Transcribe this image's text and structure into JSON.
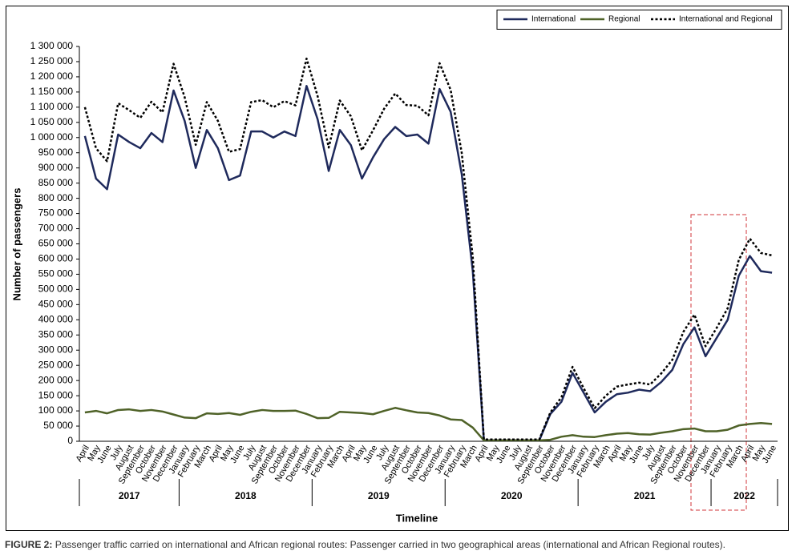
{
  "chart_data": {
    "type": "line",
    "y_label": "Number of passengers",
    "x_label": "Timeline",
    "caption_label": "FIGURE 2:",
    "caption": "Passenger traffic carried on international and African regional routes: Passenger carried in two geographical areas (international and African Regional routes).",
    "categories": [
      "April",
      "May",
      "June",
      "July",
      "August",
      "September",
      "October",
      "November",
      "December",
      "January",
      "February",
      "March",
      "April",
      "May",
      "June",
      "July",
      "August",
      "September",
      "October",
      "November",
      "December",
      "January",
      "February",
      "March",
      "April",
      "May",
      "June",
      "July",
      "August",
      "September",
      "October",
      "November",
      "December",
      "January",
      "February",
      "March",
      "April",
      "May",
      "June",
      "July",
      "August",
      "September",
      "October",
      "November",
      "December",
      "January",
      "February",
      "March",
      "April",
      "May",
      "June",
      "July",
      "August",
      "September",
      "October",
      "November",
      "December",
      "January",
      "February",
      "March",
      "April",
      "May",
      "June"
    ],
    "category_years": [
      "2017",
      "2017",
      "2017",
      "2017",
      "2017",
      "2017",
      "2017",
      "2017",
      "2017",
      "2018",
      "2018",
      "2018",
      "2018",
      "2018",
      "2018",
      "2018",
      "2018",
      "2018",
      "2018",
      "2018",
      "2018",
      "2019",
      "2019",
      "2019",
      "2019",
      "2019",
      "2019",
      "2019",
      "2019",
      "2019",
      "2019",
      "2019",
      "2019",
      "2020",
      "2020",
      "2020",
      "2020",
      "2020",
      "2020",
      "2020",
      "2020",
      "2020",
      "2020",
      "2020",
      "2020",
      "2021",
      "2021",
      "2021",
      "2021",
      "2021",
      "2021",
      "2021",
      "2021",
      "2021",
      "2021",
      "2021",
      "2021",
      "2022",
      "2022",
      "2022",
      "2022",
      "2022",
      "2022"
    ],
    "series": [
      {
        "name": "International",
        "color": "#1f2a5c",
        "dash": "solid",
        "values": [
          1005000,
          865000,
          830000,
          1010000,
          985000,
          965000,
          1015000,
          985000,
          1155000,
          1055000,
          900000,
          1025000,
          965000,
          860000,
          875000,
          1020000,
          1020000,
          1000000,
          1020000,
          1005000,
          1170000,
          1060000,
          890000,
          1025000,
          975000,
          865000,
          935000,
          995000,
          1035000,
          1005000,
          1010000,
          980000,
          1160000,
          1085000,
          880000,
          560000,
          3000,
          3000,
          3000,
          3000,
          3000,
          3000,
          90000,
          130000,
          225000,
          160000,
          95000,
          130000,
          155000,
          160000,
          170000,
          165000,
          195000,
          235000,
          320000,
          375000,
          280000,
          340000,
          400000,
          545000,
          610000,
          560000,
          555000
        ]
      },
      {
        "name": "Regional",
        "color": "#4f6228",
        "dash": "solid",
        "values": [
          95000,
          100000,
          92000,
          103000,
          105000,
          100000,
          103000,
          98000,
          88000,
          78000,
          76000,
          92000,
          90000,
          93000,
          87000,
          97000,
          103000,
          100000,
          100000,
          101000,
          90000,
          76000,
          77000,
          97000,
          95000,
          93000,
          89000,
          100000,
          110000,
          102000,
          95000,
          93000,
          85000,
          72000,
          70000,
          45000,
          3000,
          3000,
          3000,
          3000,
          3000,
          3000,
          5000,
          15000,
          20000,
          15000,
          14000,
          20000,
          25000,
          27000,
          23000,
          22000,
          28000,
          33000,
          40000,
          42000,
          33000,
          33000,
          38000,
          52000,
          57000,
          60000,
          57000
        ]
      },
      {
        "name": "International and Regional",
        "color": "#000000",
        "dash": "dotted",
        "values": [
          1100000,
          965000,
          922000,
          1113000,
          1090000,
          1065000,
          1118000,
          1083000,
          1243000,
          1133000,
          976000,
          1117000,
          1055000,
          953000,
          962000,
          1117000,
          1123000,
          1100000,
          1120000,
          1106000,
          1260000,
          1136000,
          967000,
          1122000,
          1070000,
          958000,
          1024000,
          1095000,
          1145000,
          1107000,
          1105000,
          1073000,
          1245000,
          1157000,
          950000,
          605000,
          6000,
          6000,
          6000,
          6000,
          6000,
          6000,
          95000,
          145000,
          245000,
          175000,
          109000,
          150000,
          180000,
          187000,
          193000,
          187000,
          223000,
          268000,
          360000,
          417000,
          313000,
          373000,
          438000,
          597000,
          667000,
          620000,
          612000
        ]
      }
    ],
    "ylim": [
      0,
      1300000
    ],
    "yticks": [
      0,
      {
        "value": 50000,
        "label": "50 000"
      },
      {
        "value": 100000,
        "label": "100 000"
      },
      {
        "value": 150000,
        "label": "150 000"
      },
      {
        "value": 200000,
        "label": "200 000"
      },
      {
        "value": 250000,
        "label": "250 000"
      },
      {
        "value": 300000,
        "label": "300 000"
      },
      {
        "value": 350000,
        "label": "350 000"
      },
      {
        "value": 400000,
        "label": "400 000"
      },
      {
        "value": 450000,
        "label": "450 000"
      },
      {
        "value": 500000,
        "label": "500 000"
      },
      {
        "value": 550000,
        "label": "550 000"
      },
      {
        "value": 600000,
        "label": "600 000"
      },
      {
        "value": 650000,
        "label": "650 000"
      },
      {
        "value": 700000,
        "label": "700 000"
      },
      {
        "value": 750000,
        "label": "750 000"
      },
      {
        "value": 800000,
        "label": "800 000"
      },
      {
        "value": 850000,
        "label": "850 000"
      },
      {
        "value": 900000,
        "label": "900 000"
      },
      {
        "value": 950000,
        "label": "950 000"
      },
      {
        "value": 1000000,
        "label": "1 000 000"
      },
      {
        "value": 1050000,
        "label": "1 050 000"
      },
      {
        "value": 1100000,
        "label": "1 100 000"
      },
      {
        "value": 1150000,
        "label": "1 150 000"
      },
      {
        "value": 1200000,
        "label": "1 200 000"
      },
      {
        "value": 1250000,
        "label": "1 250 000"
      },
      {
        "value": 1300000,
        "label": "1 300 000"
      }
    ],
    "grid": false,
    "legend": "top-right"
  }
}
